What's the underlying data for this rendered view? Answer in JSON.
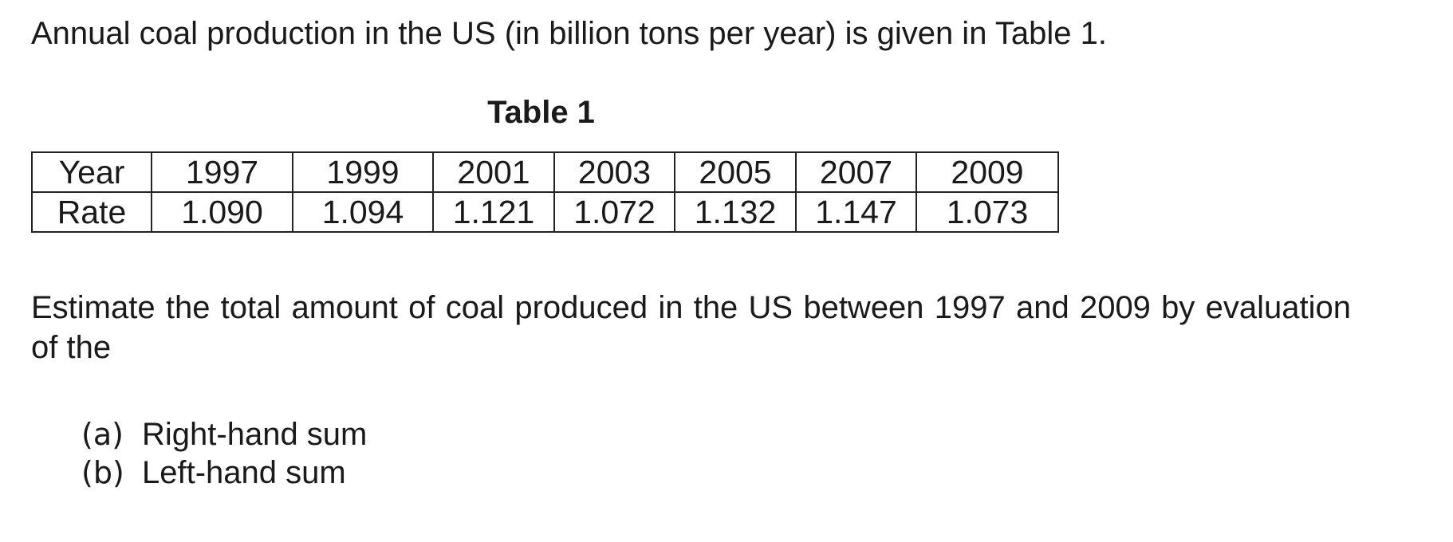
{
  "intro_text": "Annual coal production in the US (in billion tons per year) is given in Table 1.",
  "table": {
    "caption": "Table 1",
    "row_headers": [
      "Year",
      "Rate"
    ],
    "years": [
      "1997",
      "1999",
      "2001",
      "2003",
      "2005",
      "2007",
      "2009"
    ],
    "rates": [
      "1.090",
      "1.094",
      "1.121",
      "1.072",
      "1.132",
      "1.147",
      "1.073"
    ]
  },
  "question_text": "Estimate the total amount of coal produced in the US between 1997 and 2009 by evaluation of the",
  "parts": [
    {
      "marker": "(a)",
      "text": "Right-hand sum"
    },
    {
      "marker": "(b)",
      "text": "Left-hand sum"
    }
  ]
}
